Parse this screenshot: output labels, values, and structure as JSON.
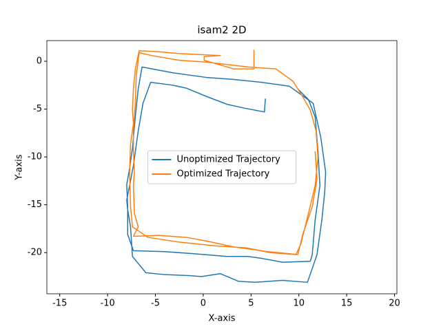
{
  "chart_data": {
    "type": "line",
    "title": "isam2 2D",
    "xlabel": "X-axis",
    "ylabel": "Y-axis",
    "xlim": [
      -16.35,
      20.25
    ],
    "ylim": [
      -24.3,
      2.16
    ],
    "xticks": [
      -15,
      -10,
      -5,
      0,
      5,
      10,
      15,
      20
    ],
    "yticks": [
      0,
      -5,
      -10,
      -15,
      -20
    ],
    "grid": false,
    "legend": "center",
    "series": [
      {
        "name": "Unoptimized Trajectory",
        "color": "#1f77b4",
        "x": [
          6.5,
          6.4,
          4.3,
          2.5,
          0.4,
          -1.8,
          -3.2,
          -5.5,
          -6.3,
          -6.8,
          -7.3,
          -7.7,
          -8.0,
          -7.9,
          -7.6,
          -7.4,
          -6.0,
          -4.0,
          -1.4,
          -0.2,
          1.8,
          3.7,
          5.4,
          8.3,
          10.9,
          11.9,
          12.4,
          12.7,
          12.8,
          12.3,
          11.5,
          9.0,
          6.1,
          3.2,
          0.4,
          -3.2,
          -6.4,
          -6.8,
          -7.1,
          -7.4,
          -7.7,
          -8.0,
          -7.9,
          -7.9,
          -7.3,
          -4.0,
          -1.1,
          2.5,
          4.7,
          6.1,
          8.3,
          11.2,
          11.4,
          11.7,
          12.2,
          12.0,
          11.7,
          11.0,
          9.9
        ],
        "values": [
          -3.9,
          -5.3,
          -4.9,
          -4.5,
          -3.7,
          -2.8,
          -2.5,
          -2.2,
          -4.4,
          -7.3,
          -10.9,
          -13.0,
          -14.5,
          -15.5,
          -17.3,
          -20.4,
          -22.1,
          -22.3,
          -22.4,
          -22.5,
          -22.2,
          -23.0,
          -23.1,
          -22.9,
          -23.1,
          -20.2,
          -16.6,
          -13.7,
          -11.6,
          -8.0,
          -4.4,
          -2.6,
          -2.2,
          -1.9,
          -1.7,
          -1.2,
          -0.6,
          -2.9,
          -5.8,
          -9.1,
          -11.2,
          -12.9,
          -15.2,
          -18.1,
          -19.8,
          -19.9,
          -20.1,
          -20.4,
          -20.4,
          -20.6,
          -21.0,
          -20.9,
          -20.2,
          -16.6,
          -13.0,
          -9.4,
          -5.8,
          -4.0,
          -2.9
        ]
      },
      {
        "name": "Optimized Trajectory",
        "color": "#ff7f0e",
        "x": [
          5.3,
          5.3,
          3.2,
          0.1,
          0.1,
          1.8,
          -2.5,
          -4.7,
          -6.7,
          -7.1,
          -7.3,
          -7.4,
          -7.3,
          -7.6,
          -7.7,
          -7.6,
          -7.4,
          -5.8,
          -2.5,
          1.4,
          4.5,
          7.0,
          9.7,
          10.2,
          11.0,
          11.7,
          12.0,
          11.8,
          11.2,
          10.4,
          9.4,
          7.6,
          4.7,
          0.4,
          -2.5,
          -5.4,
          -6.7,
          -7.0,
          -7.1,
          -7.3,
          -7.3,
          -7.2,
          -7.3,
          -7.2,
          -6.8,
          -7.3,
          -4.7,
          -1.8,
          0.4,
          3.2,
          6.8,
          9.9,
          10.4,
          11.4,
          11.9,
          11.7
        ],
        "values": [
          1.2,
          -0.8,
          -0.8,
          0.1,
          0.5,
          0.6,
          0.8,
          1.0,
          1.1,
          -0.8,
          -2.9,
          -5.1,
          -6.5,
          -8.7,
          -11.6,
          -15.2,
          -17.3,
          -18.4,
          -18.9,
          -19.3,
          -19.5,
          -20.0,
          -20.2,
          -19.1,
          -15.9,
          -13.0,
          -10.1,
          -7.3,
          -5.1,
          -3.7,
          -2.1,
          -0.8,
          -0.6,
          -0.1,
          0.1,
          0.6,
          0.9,
          -1.5,
          -4.4,
          -7.3,
          -9.4,
          -11.6,
          -13.0,
          -15.9,
          -17.3,
          -18.3,
          -18.2,
          -18.4,
          -18.8,
          -19.4,
          -19.9,
          -20.2,
          -18.1,
          -15.2,
          -12.3,
          -9.4
        ]
      }
    ]
  }
}
